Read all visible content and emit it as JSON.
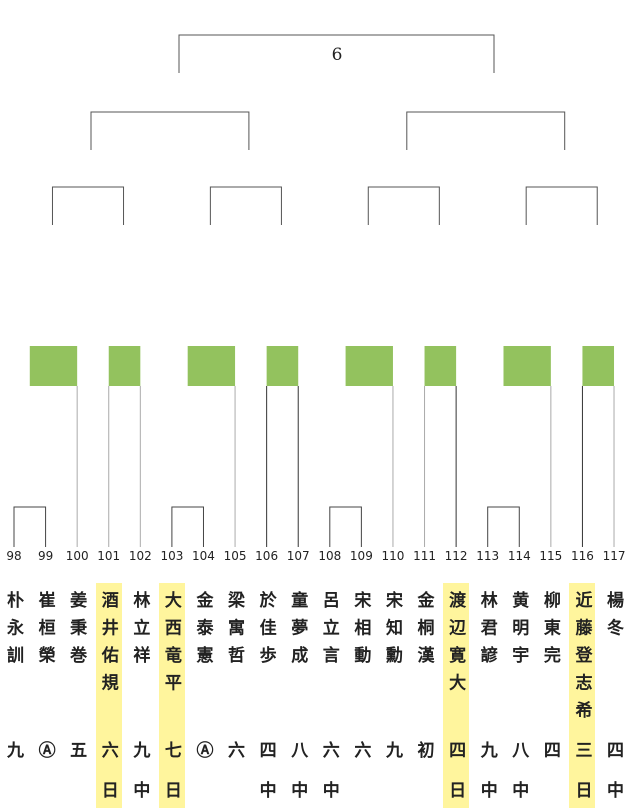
{
  "top_label": "6",
  "entrants": [
    {
      "number": "98",
      "name": "朴永訓",
      "rank": "九"
    },
    {
      "number": "99",
      "name": "崔桓榮",
      "rank": "Ⓐ"
    },
    {
      "number": "100",
      "name": "姜秉巻",
      "rank": "五"
    },
    {
      "number": "101",
      "name": "酒井佑規",
      "rank": "六",
      "affiliation": "日",
      "highlight": true
    },
    {
      "number": "102",
      "name": "林立祥",
      "rank": "九",
      "affiliation": "中"
    },
    {
      "number": "103",
      "name": "大西竜平",
      "rank": "七",
      "affiliation": "日",
      "highlight": true
    },
    {
      "number": "104",
      "name": "金泰憲",
      "rank": "Ⓐ"
    },
    {
      "number": "105",
      "name": "梁寓哲",
      "rank": "六"
    },
    {
      "number": "106",
      "name": "於佳歩",
      "rank": "四",
      "affiliation": "中"
    },
    {
      "number": "107",
      "name": "童夢成",
      "rank": "八",
      "affiliation": "中"
    },
    {
      "number": "108",
      "name": "呂立言",
      "rank": "六",
      "affiliation": "中"
    },
    {
      "number": "109",
      "name": "宋相動",
      "rank": "六"
    },
    {
      "number": "110",
      "name": "宋知勳",
      "rank": "九"
    },
    {
      "number": "111",
      "name": "金桐漢",
      "rank": "初"
    },
    {
      "number": "112",
      "name": "渡辺寛大",
      "rank": "四",
      "affiliation": "日",
      "highlight": true
    },
    {
      "number": "113",
      "name": "林君諺",
      "rank": "九",
      "affiliation": "中"
    },
    {
      "number": "114",
      "name": "黄明宇",
      "rank": "八",
      "affiliation": "中"
    },
    {
      "number": "115",
      "name": "柳東完",
      "rank": "四"
    },
    {
      "number": "116",
      "name": "近藤登志希",
      "rank": "三",
      "affiliation": "日",
      "highlight": true
    },
    {
      "number": "117",
      "name": "楊冬",
      "rank": "四",
      "affiliation": "中"
    }
  ]
}
